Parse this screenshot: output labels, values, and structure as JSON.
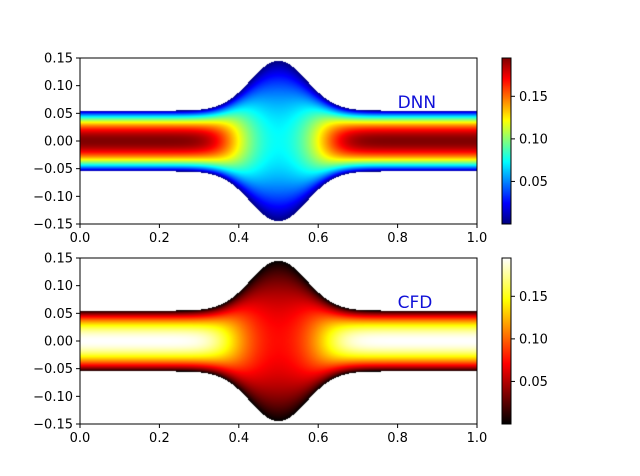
{
  "chart_data": [
    {
      "type": "heatmap",
      "label": "DNN",
      "colormap": "jet",
      "xlim": [
        0.0,
        1.0
      ],
      "ylim": [
        -0.15,
        0.15
      ],
      "x_ticks": [
        "0.0",
        "0.2",
        "0.4",
        "0.6",
        "0.8",
        "1.0"
      ],
      "y_ticks": [
        "0.15",
        "0.10",
        "0.05",
        "0.00",
        "−0.05",
        "−0.10",
        "−0.15"
      ],
      "colorbar": {
        "min": 0.0,
        "max": 0.195,
        "ticks": [
          "0.15",
          "0.10",
          "0.05"
        ]
      },
      "geometry": {
        "channel_half_width": 0.055,
        "bulge_center_x": 0.5,
        "bulge_peak_half_width": 0.145
      },
      "field": {
        "peak_value": 0.195,
        "profile": "parabolic across channel, reduced in the bulge region"
      }
    },
    {
      "type": "heatmap",
      "label": "CFD",
      "colormap": "hot",
      "xlim": [
        0.0,
        1.0
      ],
      "ylim": [
        -0.15,
        0.15
      ],
      "x_ticks": [
        "0.0",
        "0.2",
        "0.4",
        "0.6",
        "0.8",
        "1.0"
      ],
      "y_ticks": [
        "0.15",
        "0.10",
        "0.05",
        "0.00",
        "−0.05",
        "−0.10",
        "−0.15"
      ],
      "colorbar": {
        "min": 0.0,
        "max": 0.195,
        "ticks": [
          "0.15",
          "0.10",
          "0.05"
        ]
      },
      "geometry": {
        "channel_half_width": 0.055,
        "bulge_center_x": 0.5,
        "bulge_peak_half_width": 0.145
      },
      "field": {
        "peak_value": 0.195,
        "profile": "parabolic across channel, reduced in the bulge region"
      }
    }
  ]
}
